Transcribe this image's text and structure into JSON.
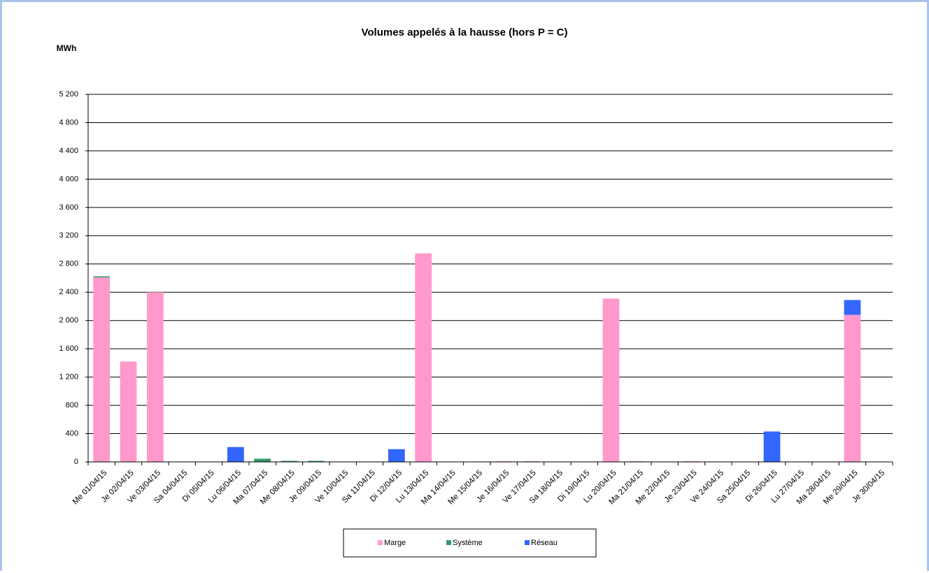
{
  "chart_data": {
    "type": "stacked_bar",
    "title": "Volumes appelés à la hausse (hors P = C)",
    "y_label": "MWh",
    "categories": [
      "Me 01/04/15",
      "Je 02/04/15",
      "Ve 03/04/15",
      "Sa 04/04/15",
      "Di 05/04/15",
      "Lu 06/04/15",
      "Ma 07/04/15",
      "Me 08/04/15",
      "Je 09/04/15",
      "Ve 10/04/15",
      "Sa 11/04/15",
      "Di 12/04/15",
      "Lu 13/04/15",
      "Ma 14/04/15",
      "Me 15/04/15",
      "Je 16/04/15",
      "Ve 17/04/15",
      "Sa 18/04/15",
      "Di 19/04/15",
      "Lu 20/04/15",
      "Ma 21/04/15",
      "Me 22/04/15",
      "Je 23/04/15",
      "Ve 24/04/15",
      "Sa 25/04/15",
      "Di 26/04/15",
      "Lu 27/04/15",
      "Ma 28/04/15",
      "Me 29/04/15",
      "Je 30/04/15"
    ],
    "series": [
      {
        "name": "Marge",
        "color": "#ff99cc",
        "values": [
          2610,
          1420,
          2400,
          0,
          0,
          0,
          0,
          0,
          0,
          0,
          0,
          0,
          2950,
          0,
          0,
          10,
          10,
          0,
          0,
          2310,
          10,
          0,
          10,
          0,
          0,
          0,
          0,
          0,
          2080,
          0
        ]
      },
      {
        "name": "Système",
        "color": "#339966",
        "values": [
          15,
          0,
          0,
          0,
          0,
          0,
          45,
          15,
          15,
          0,
          0,
          0,
          0,
          0,
          0,
          0,
          0,
          0,
          0,
          0,
          0,
          0,
          0,
          0,
          0,
          0,
          0,
          0,
          0,
          0
        ]
      },
      {
        "name": "Réseau",
        "color": "#3366ff",
        "values": [
          0,
          0,
          0,
          0,
          0,
          210,
          0,
          0,
          0,
          0,
          0,
          180,
          0,
          0,
          0,
          0,
          0,
          0,
          0,
          0,
          0,
          0,
          0,
          0,
          0,
          430,
          0,
          0,
          210,
          0
        ]
      }
    ],
    "ylim": [
      0,
      5200
    ],
    "yticks": [
      0,
      400,
      800,
      {
        "value": 1200,
        "label": "1 200"
      },
      {
        "value": 1600,
        "label": "1 600"
      },
      {
        "value": 2000,
        "label": "2 000"
      },
      {
        "value": 2400,
        "label": "2 400"
      },
      {
        "value": 2800,
        "label": "2 800"
      },
      {
        "value": 3200,
        "label": "3 200"
      },
      {
        "value": 3600,
        "label": "3 600"
      },
      {
        "value": 4000,
        "label": "4 000"
      },
      {
        "value": 4400,
        "label": "4 400"
      },
      {
        "value": 4800,
        "label": "4 800"
      },
      {
        "value": 5200,
        "label": "5 200"
      }
    ],
    "grid": true,
    "legend": "bottom"
  }
}
